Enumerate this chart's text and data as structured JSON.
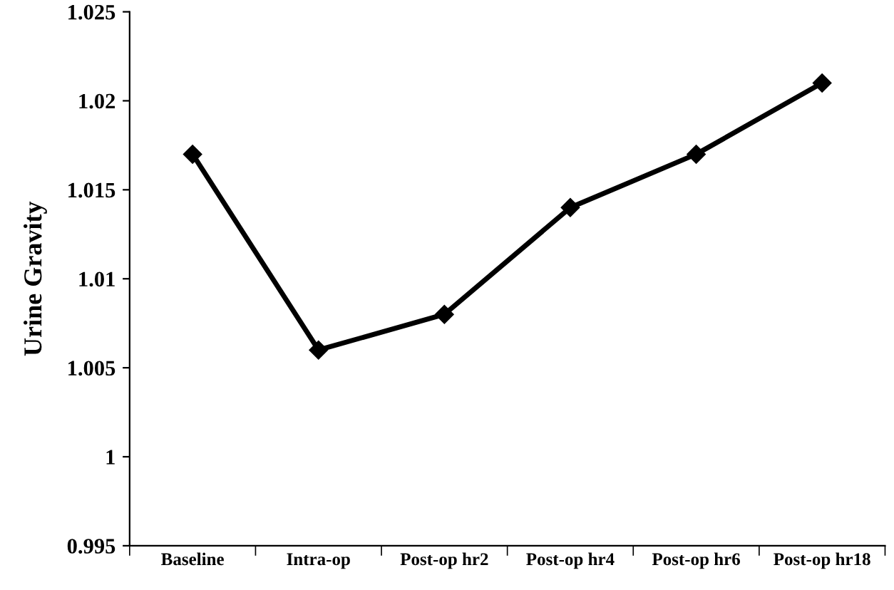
{
  "chart_data": {
    "type": "line",
    "ylabel": "Urine Gravity",
    "categories": [
      "Baseline",
      "Intra-op",
      "Post-op hr2",
      "Post-op hr4",
      "Post-op hr6",
      "Post-op hr18"
    ],
    "series": [
      {
        "color": "#000000",
        "values": [
          1.017,
          1.006,
          1.008,
          1.014,
          1.017,
          1.021
        ]
      }
    ],
    "ylim": [
      0.995,
      1.025
    ],
    "yticks": [
      0.995,
      1,
      1.005,
      1.01,
      1.015,
      1.02,
      1.025
    ],
    "grid": false,
    "legend": false,
    "marker": "diamond",
    "line_style": "solid"
  }
}
